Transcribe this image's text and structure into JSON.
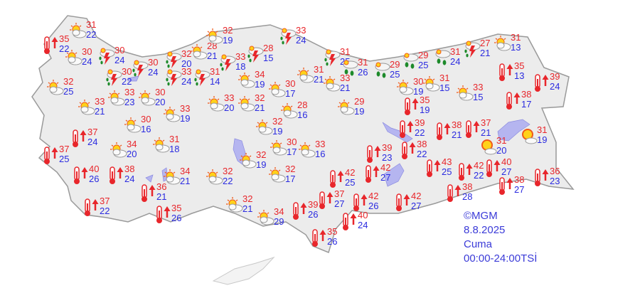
{
  "colors": {
    "max_temp": "#e8262b",
    "min_temp": "#2b2be0",
    "land": "#ececec",
    "water": "#b5b5f0",
    "border": "#9a9a9a"
  },
  "caption": {
    "copyright": "©MGM",
    "date": "8.8.2025",
    "day": "Cuma",
    "period": "00:00-24:00TSİ"
  },
  "stations": [
    {
      "icon": "hot",
      "max": "35",
      "min": "22"
    },
    {
      "icon": "partly-cloudy",
      "max": "31",
      "min": "22"
    },
    {
      "icon": "partly-cloudy",
      "max": "30",
      "min": "24"
    },
    {
      "icon": "thunderstorm",
      "max": "30",
      "min": "24"
    },
    {
      "icon": "thunderstorm",
      "max": "30",
      "min": "24"
    },
    {
      "icon": "thunderstorm",
      "max": "30",
      "min": "22"
    },
    {
      "icon": "thunderstorm",
      "max": "32",
      "min": "20"
    },
    {
      "icon": "partly-cloudy",
      "max": "28",
      "min": "21"
    },
    {
      "icon": "thunderstorm",
      "max": "33",
      "min": "18"
    },
    {
      "icon": "thunderstorm",
      "max": "28",
      "min": "15"
    },
    {
      "icon": "partly-cloudy",
      "max": "32",
      "min": "19"
    },
    {
      "icon": "thunderstorm",
      "max": "33",
      "min": "24"
    },
    {
      "icon": "partly-cloudy",
      "max": "32",
      "min": "25"
    },
    {
      "icon": "thunderstorm",
      "max": "33",
      "min": "24"
    },
    {
      "icon": "thunderstorm",
      "max": "31",
      "min": "14"
    },
    {
      "icon": "partly-cloudy",
      "max": "33",
      "min": "23"
    },
    {
      "icon": "partly-cloudy",
      "max": "30",
      "min": "20"
    },
    {
      "icon": "partly-cloudy",
      "max": "33",
      "min": "21"
    },
    {
      "icon": "partly-cloudy",
      "max": "34",
      "min": "19"
    },
    {
      "icon": "partly-cloudy",
      "max": "30",
      "min": "17"
    },
    {
      "icon": "partly-cloudy",
      "max": "31",
      "min": "21"
    },
    {
      "icon": "thunderstorm",
      "max": "31",
      "min": "25"
    },
    {
      "icon": "rain",
      "max": "31",
      "min": "26"
    },
    {
      "icon": "rain",
      "max": "29",
      "min": "25"
    },
    {
      "icon": "partly-cloudy",
      "max": "33",
      "min": "21"
    },
    {
      "icon": "partly-cloudy",
      "max": "33",
      "min": "20"
    },
    {
      "icon": "partly-cloudy",
      "max": "32",
      "min": "21"
    },
    {
      "icon": "partly-cloudy",
      "max": "33",
      "min": "19"
    },
    {
      "icon": "partly-cloudy",
      "max": "28",
      "min": "16"
    },
    {
      "icon": "partly-cloudy",
      "max": "29",
      "min": "19"
    },
    {
      "icon": "rain",
      "max": "29",
      "min": "25"
    },
    {
      "icon": "rain",
      "max": "31",
      "min": "24"
    },
    {
      "icon": "thunderstorm",
      "max": "27",
      "min": "21"
    },
    {
      "icon": "partly-cloudy",
      "max": "31",
      "min": "13"
    },
    {
      "icon": "hot",
      "max": "35",
      "min": "13"
    },
    {
      "icon": "hot",
      "max": "39",
      "min": "24"
    },
    {
      "icon": "partly-cloudy",
      "max": "30",
      "min": "19"
    },
    {
      "icon": "partly-cloudy",
      "max": "31",
      "min": "15"
    },
    {
      "icon": "partly-cloudy",
      "max": "33",
      "min": "15"
    },
    {
      "icon": "hot",
      "max": "35",
      "min": "19"
    },
    {
      "icon": "hot",
      "max": "38",
      "min": "17"
    },
    {
      "icon": "partly-cloudy",
      "max": "30",
      "min": "16"
    },
    {
      "icon": "partly-cloudy",
      "max": "32",
      "min": "19"
    },
    {
      "icon": "hot",
      "max": "37",
      "min": "24"
    },
    {
      "icon": "partly-cloudy",
      "max": "34",
      "min": "20"
    },
    {
      "icon": "partly-cloudy",
      "max": "31",
      "min": "18"
    },
    {
      "icon": "partly-cloudy",
      "max": "30",
      "min": "17"
    },
    {
      "icon": "partly-cloudy",
      "max": "33",
      "min": "16"
    },
    {
      "icon": "hot",
      "max": "37",
      "min": "25"
    },
    {
      "icon": "partly-cloudy",
      "max": "32",
      "min": "19"
    },
    {
      "icon": "partly-cloudy",
      "max": "34",
      "min": "21"
    },
    {
      "icon": "partly-cloudy",
      "max": "32",
      "min": "22"
    },
    {
      "icon": "partly-cloudy",
      "max": "32",
      "min": "17"
    },
    {
      "icon": "hot",
      "max": "40",
      "min": "26"
    },
    {
      "icon": "hot",
      "max": "38",
      "min": "24"
    },
    {
      "icon": "hot",
      "max": "36",
      "min": "21"
    },
    {
      "icon": "hot",
      "max": "37",
      "min": "22"
    },
    {
      "icon": "hot",
      "max": "35",
      "min": "26"
    },
    {
      "icon": "partly-cloudy",
      "max": "32",
      "min": "21"
    },
    {
      "icon": "partly-cloudy",
      "max": "34",
      "min": "29"
    },
    {
      "icon": "hot",
      "max": "39",
      "min": "26"
    },
    {
      "icon": "hot",
      "max": "37",
      "min": "27"
    },
    {
      "icon": "hot",
      "max": "40",
      "min": "24"
    },
    {
      "icon": "hot",
      "max": "35",
      "min": "26"
    },
    {
      "icon": "hot",
      "max": "42",
      "min": "25"
    },
    {
      "icon": "hot",
      "max": "42",
      "min": "27"
    },
    {
      "icon": "hot",
      "max": "42",
      "min": "26"
    },
    {
      "icon": "hot",
      "max": "42",
      "min": "27"
    },
    {
      "icon": "hot",
      "max": "39",
      "min": "23"
    },
    {
      "icon": "hot",
      "max": "38",
      "min": "22"
    },
    {
      "icon": "hot",
      "max": "39",
      "min": "22"
    },
    {
      "icon": "hot",
      "max": "38",
      "min": "21"
    },
    {
      "icon": "hot",
      "max": "37",
      "min": "21"
    },
    {
      "icon": "hot",
      "max": "43",
      "min": "25"
    },
    {
      "icon": "hot",
      "max": "42",
      "min": "22"
    },
    {
      "icon": "hot",
      "max": "40",
      "min": "27"
    },
    {
      "icon": "hot",
      "max": "38",
      "min": "28"
    },
    {
      "icon": "hot",
      "max": "38",
      "min": "27"
    },
    {
      "icon": "hot",
      "max": "36",
      "min": "23"
    },
    {
      "icon": "sunny-cloudy",
      "max": "31",
      "min": "20"
    },
    {
      "icon": "sunny-cloudy",
      "max": "31",
      "min": "19"
    }
  ]
}
